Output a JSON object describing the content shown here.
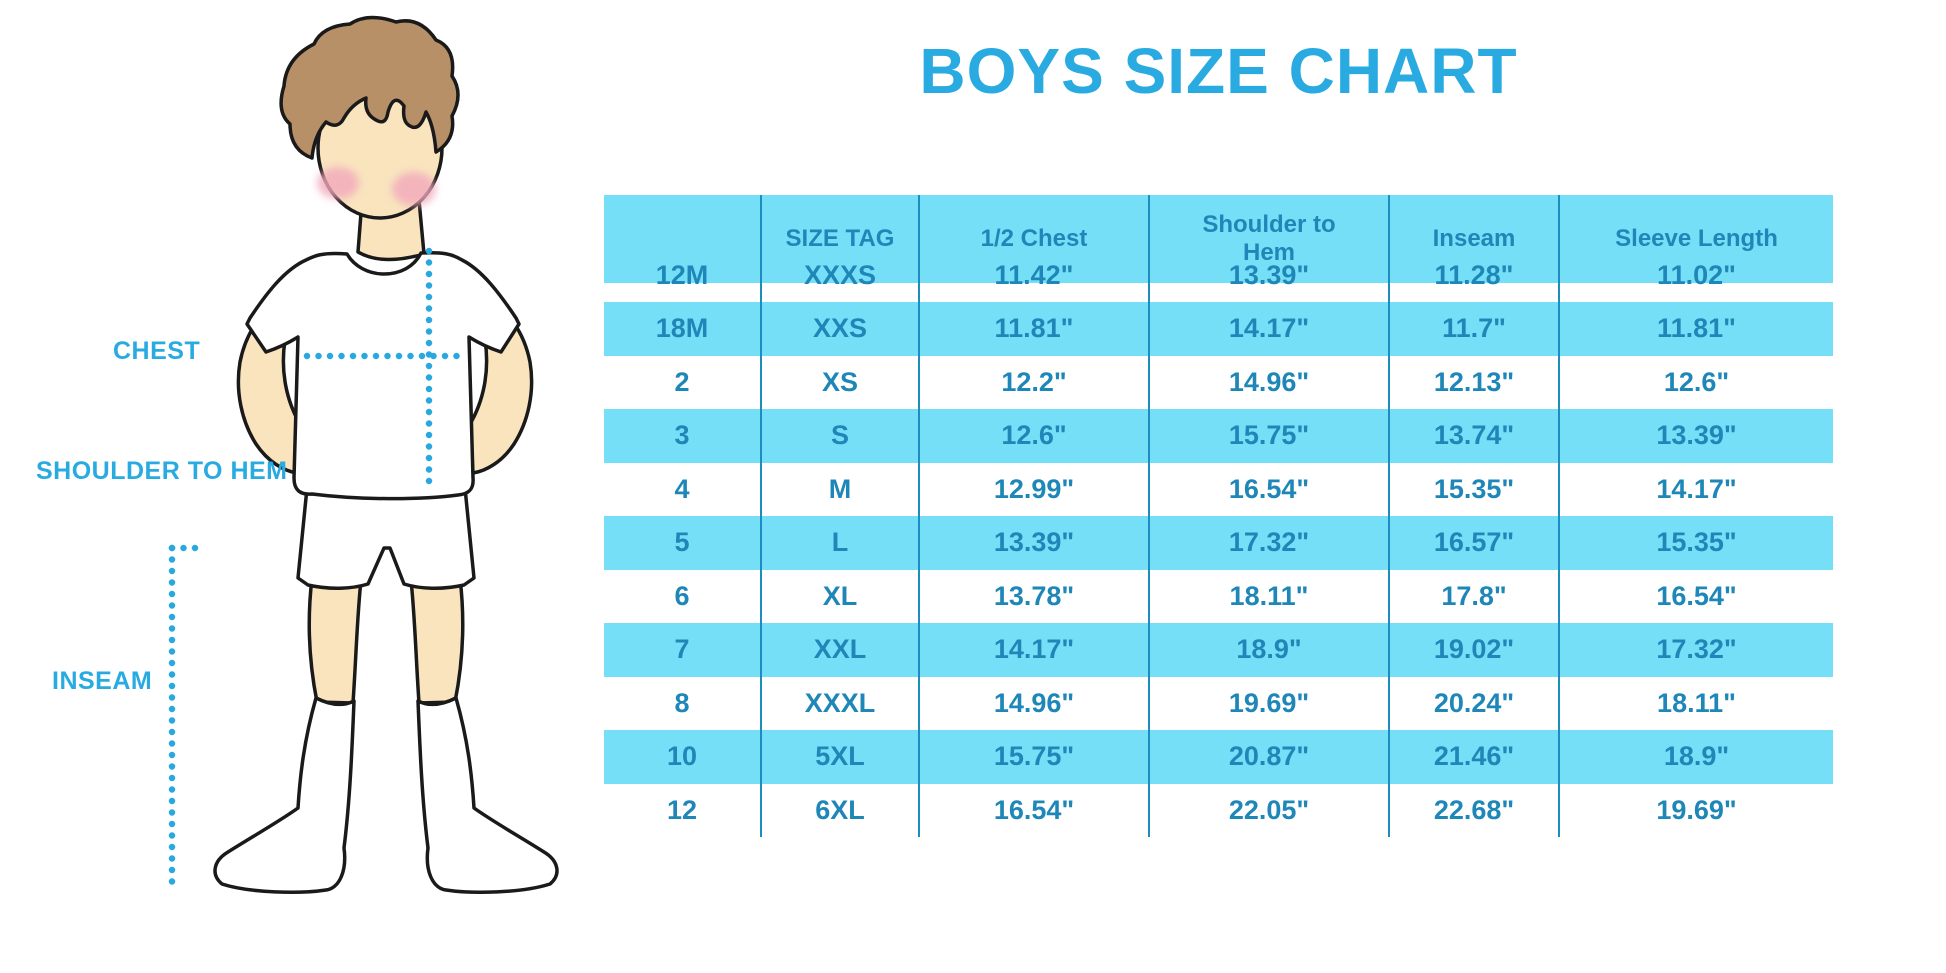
{
  "title": "BOYS SIZE CHART",
  "diagram": {
    "labels": {
      "chest": "CHEST",
      "shoulder_to_hem": "SHOULDER TO HEM",
      "inseam": "INSEAM"
    },
    "illustration": "boy-in-tshirt-shorts-and-knee-socks-with-dotted-measurement-lines"
  },
  "table": {
    "columns": [
      "",
      "SIZE TAG",
      "1/2 Chest",
      "Shoulder to Hem",
      "Inseam",
      "Sleeve Length"
    ],
    "rows": [
      [
        "12M",
        "XXXS",
        "11.42\"",
        "13.39\"",
        "11.28\"",
        "11.02\""
      ],
      [
        "18M",
        "XXS",
        "11.81\"",
        "14.17\"",
        "11.7\"",
        "11.81\""
      ],
      [
        "2",
        "XS",
        "12.2\"",
        "14.96\"",
        "12.13\"",
        "12.6\""
      ],
      [
        "3",
        "S",
        "12.6\"",
        "15.75\"",
        "13.74\"",
        "13.39\""
      ],
      [
        "4",
        "M",
        "12.99\"",
        "16.54\"",
        "15.35\"",
        "14.17\""
      ],
      [
        "5",
        "L",
        "13.39\"",
        "17.32\"",
        "16.57\"",
        "15.35\""
      ],
      [
        "6",
        "XL",
        "13.78\"",
        "18.11\"",
        "17.8\"",
        "16.54\""
      ],
      [
        "7",
        "XXL",
        "14.17\"",
        "18.9\"",
        "19.02\"",
        "17.32\""
      ],
      [
        "8",
        "XXXL",
        "14.96\"",
        "19.69\"",
        "20.24\"",
        "18.11\""
      ],
      [
        "10",
        "5XL",
        "15.75\"",
        "20.87\"",
        "21.46\"",
        "18.9\""
      ],
      [
        "12",
        "6XL",
        "16.54\"",
        "22.05\"",
        "22.68\"",
        "19.69\""
      ]
    ]
  },
  "colors": {
    "accent_blue": "#29ABE2",
    "band_blue": "#76DFF8",
    "table_text": "#1E87B8",
    "separator": "#1D8CBF",
    "skin": "#F9E4BE",
    "hair": "#B89067",
    "blush": "#F2A9BC",
    "dotted": "#29A8DF"
  }
}
